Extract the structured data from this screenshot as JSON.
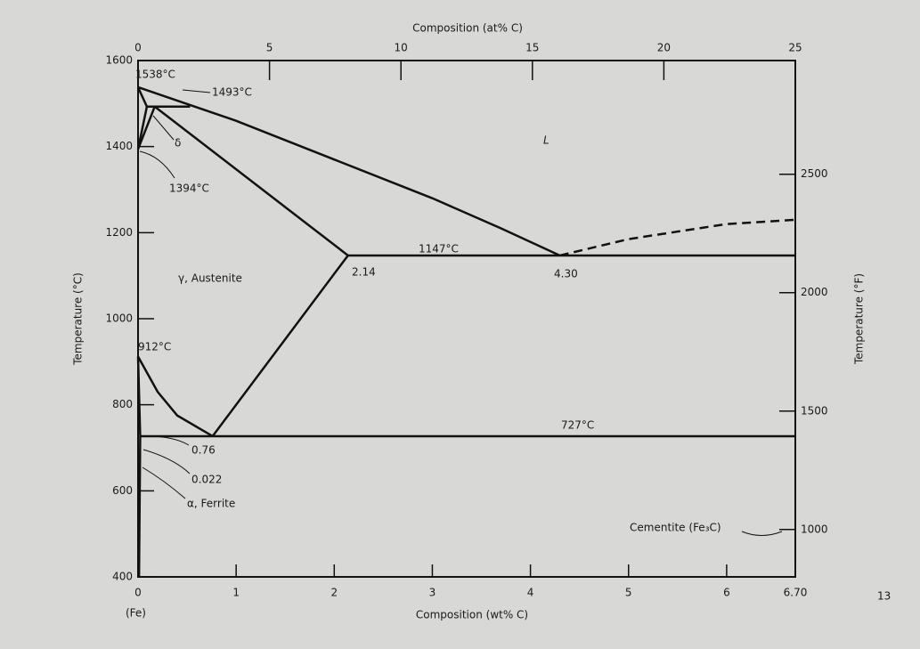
{
  "figure": {
    "x_axis": {
      "label": "Composition (wt% C)",
      "lim": [
        0,
        6.7
      ],
      "ticks": [
        0,
        1,
        2,
        3,
        4,
        5,
        6,
        {
          "value": 6.7,
          "label": "6.70"
        }
      ]
    },
    "x2_axis": {
      "label": "Composition (at% C)",
      "lim": [
        0,
        25
      ],
      "ticks": [
        0,
        5,
        10,
        15,
        20,
        25
      ]
    },
    "y_axis": {
      "label": "Temperature (°C)",
      "lim": [
        400,
        1600
      ],
      "ticks": [
        400,
        600,
        800,
        1000,
        1200,
        1400,
        1600
      ]
    },
    "y2_axis": {
      "label": "Temperature (°F)",
      "lim": [
        800,
        2980
      ],
      "ticks": [
        1000,
        1500,
        2000,
        2500
      ]
    },
    "boundaries": [
      {
        "style": "solid",
        "points": [
          [
            0,
            1538
          ],
          [
            1,
            1460
          ],
          [
            2,
            1370
          ],
          [
            3,
            1280
          ],
          [
            3.7,
            1210
          ],
          [
            4.3,
            1147
          ]
        ]
      },
      {
        "style": "dashed",
        "points": [
          [
            4.3,
            1147
          ],
          [
            5,
            1185
          ],
          [
            6,
            1220
          ],
          [
            6.7,
            1230
          ]
        ]
      },
      {
        "style": "solid",
        "points": [
          [
            2.14,
            1147
          ],
          [
            6.7,
            1147
          ]
        ]
      },
      {
        "style": "solid",
        "points": [
          [
            0.09,
            1493
          ],
          [
            0.53,
            1493
          ]
        ]
      },
      {
        "style": "solid",
        "points": [
          [
            0.17,
            1493
          ],
          [
            2.14,
            1147
          ]
        ]
      },
      {
        "style": "solid",
        "points": [
          [
            0,
            1538
          ],
          [
            0.09,
            1493
          ]
        ]
      },
      {
        "style": "solid",
        "points": [
          [
            0,
            1394
          ],
          [
            0.09,
            1493
          ]
        ]
      },
      {
        "style": "solid",
        "points": [
          [
            0,
            1394
          ],
          [
            0.17,
            1493
          ]
        ]
      },
      {
        "style": "solid",
        "points": [
          [
            2.14,
            1147
          ],
          [
            0.76,
            727
          ]
        ]
      },
      {
        "style": "solid",
        "points": [
          [
            0,
            912
          ],
          [
            0.2,
            830
          ],
          [
            0.4,
            775
          ],
          [
            0.76,
            727
          ]
        ]
      },
      {
        "style": "solid",
        "points": [
          [
            0.022,
            727
          ],
          [
            6.7,
            727
          ]
        ]
      },
      {
        "style": "solid",
        "points": [
          [
            0,
            912
          ],
          [
            0.022,
            727
          ]
        ]
      },
      {
        "style": "solid",
        "points": [
          [
            0.022,
            727
          ],
          [
            0.01,
            400
          ]
        ]
      }
    ],
    "annotations": {
      "t1538": "1538°C",
      "t1493": "1493°C",
      "t1394": "1394°C",
      "delta": "δ",
      "liquid": "L",
      "t1147": "1147°C",
      "c214": "2.14",
      "c430": "4.30",
      "austenite": "γ, Austenite",
      "t912": "912°C",
      "t727": "727°C",
      "c076": "0.76",
      "c0022": "0.022",
      "ferrite": "α, Ferrite",
      "cementite": "Cementite (Fe₃C)",
      "fe": "(Fe)"
    }
  },
  "page_number": "13"
}
